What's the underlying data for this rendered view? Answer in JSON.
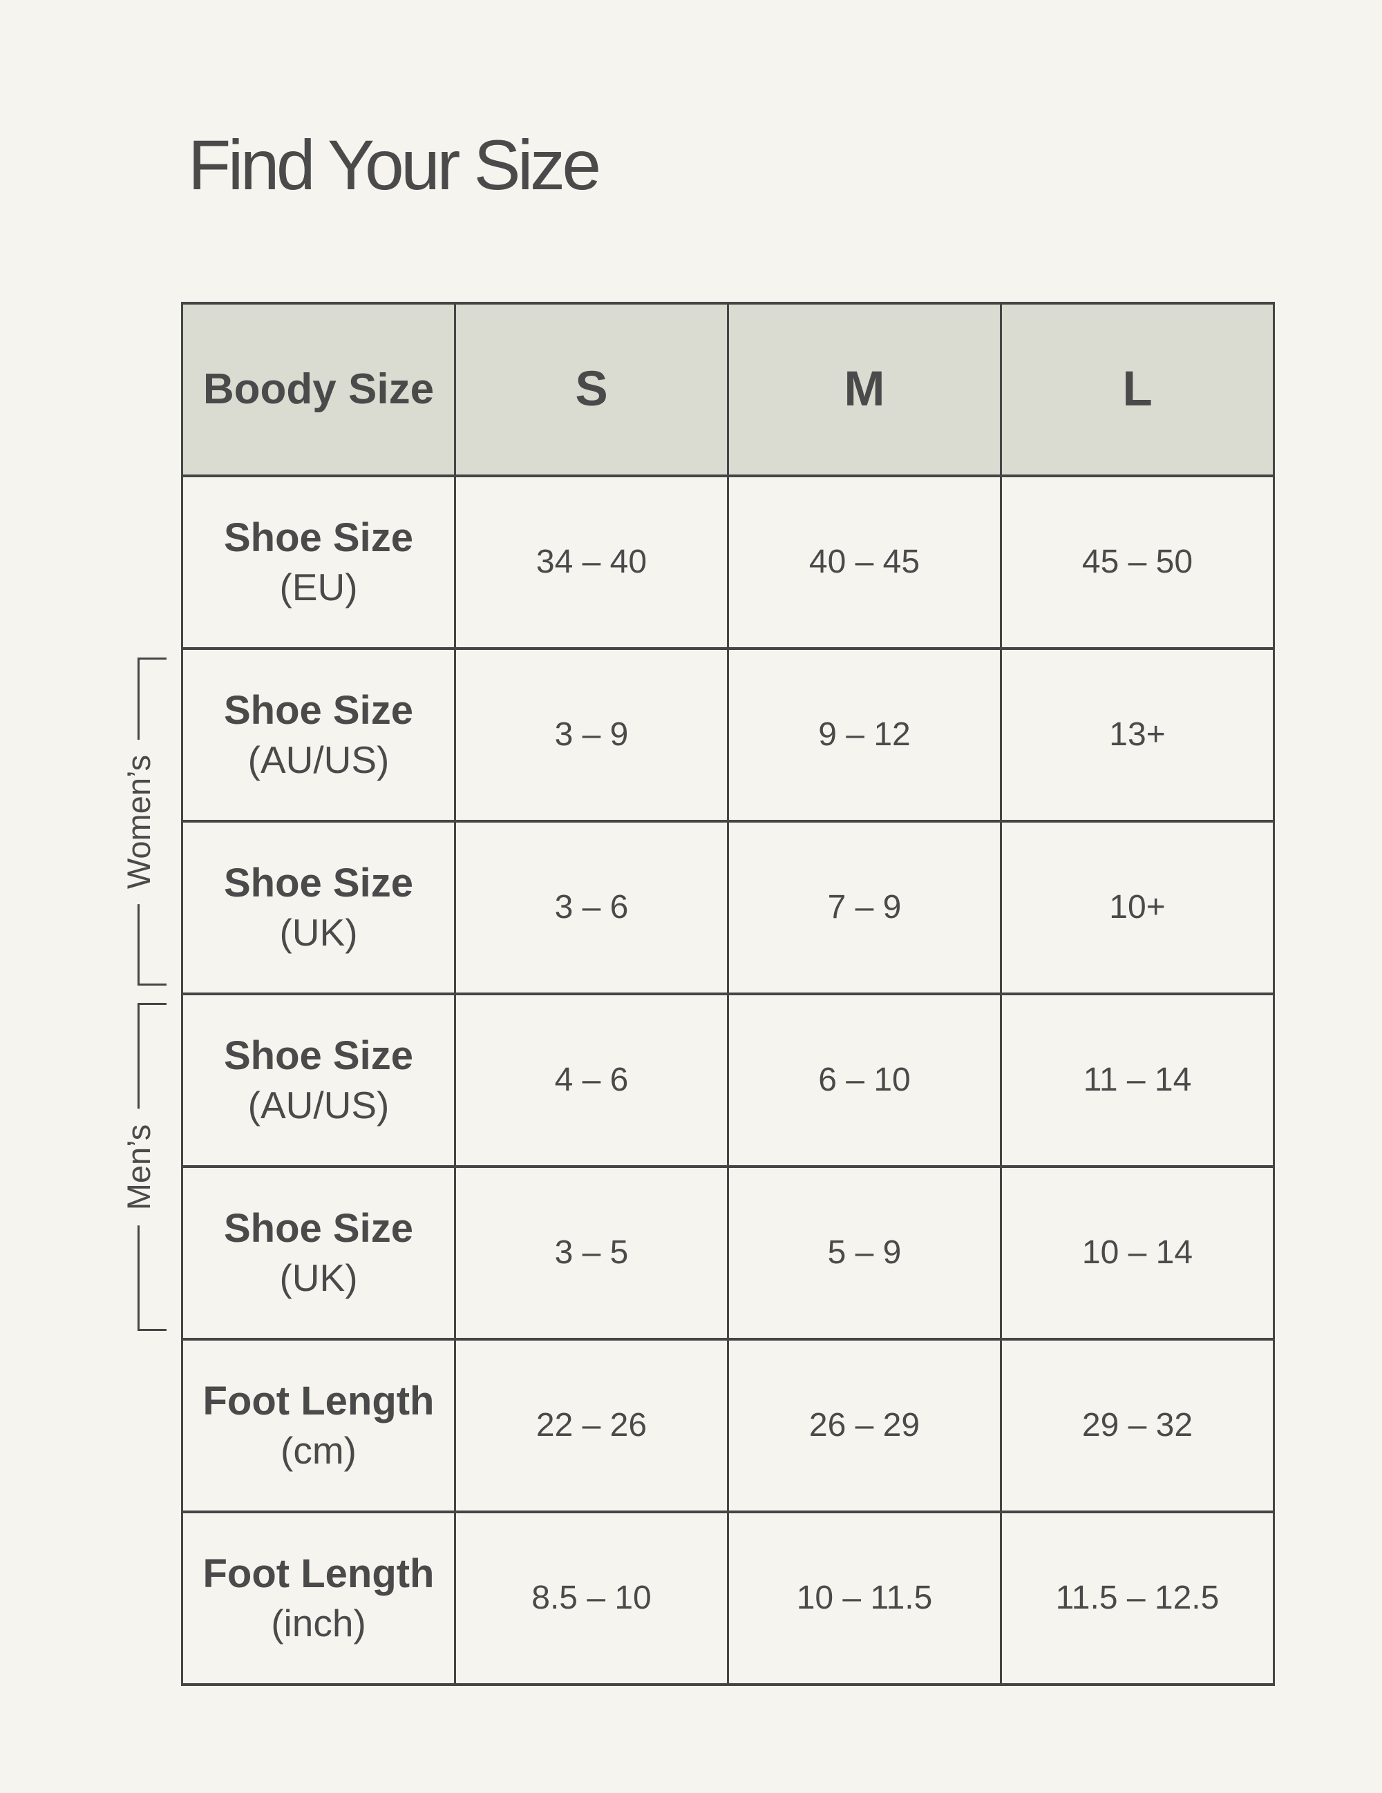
{
  "page": {
    "title": "Find Your Size"
  },
  "colors": {
    "background": "#F5F4EE",
    "header_background": "#DADBD1",
    "grid_border": "#454545",
    "text": "#4A4A4A"
  },
  "table": {
    "header": {
      "label": "Boody Size",
      "sizes": [
        "S",
        "M",
        "L"
      ]
    },
    "rows": [
      {
        "label_line1": "Shoe Size",
        "label_line2": "(EU)",
        "group": "",
        "values": [
          "34 – 40",
          "40 – 45",
          "45 – 50"
        ]
      },
      {
        "label_line1": "Shoe Size",
        "label_line2": "(AU/US)",
        "group": "womens",
        "values": [
          "3 – 9",
          "9 – 12",
          "13+"
        ]
      },
      {
        "label_line1": "Shoe Size",
        "label_line2": "(UK)",
        "group": "womens",
        "values": [
          "3 – 6",
          "7 – 9",
          "10+"
        ]
      },
      {
        "label_line1": "Shoe Size",
        "label_line2": "(AU/US)",
        "group": "mens",
        "values": [
          "4 – 6",
          "6 – 10",
          "11 – 14"
        ]
      },
      {
        "label_line1": "Shoe Size",
        "label_line2": "(UK)",
        "group": "mens",
        "values": [
          "3 – 5",
          "5 – 9",
          "10 – 14"
        ]
      },
      {
        "label_line1": "Foot Length",
        "label_line2": "(cm)",
        "group": "",
        "values": [
          "22 – 26",
          "26 – 29",
          "29 – 32"
        ]
      },
      {
        "label_line1": "Foot Length",
        "label_line2": "(inch)",
        "group": "",
        "values": [
          "8.5 – 10",
          "10 – 11.5",
          "11.5 – 12.5"
        ]
      }
    ],
    "group_labels": {
      "womens": "Women’s",
      "mens": "Men’s"
    }
  }
}
